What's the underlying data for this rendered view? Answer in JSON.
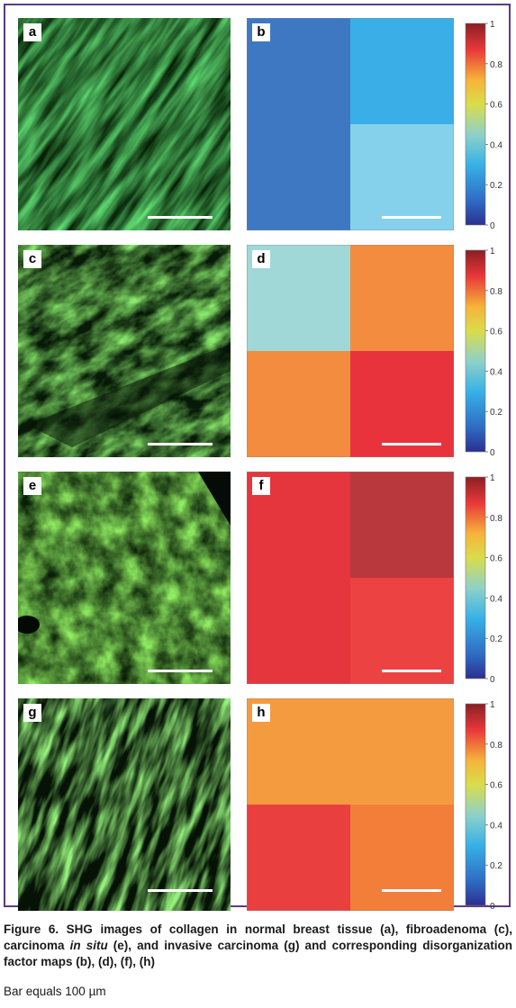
{
  "figure": {
    "panels": [
      {
        "shg_label": "a",
        "map_label": "b",
        "cells": [
          [
            "#3f78c2",
            "#3aaee6"
          ],
          [
            "#3f78c2",
            "#85d1ec"
          ]
        ]
      },
      {
        "shg_label": "c",
        "map_label": "d",
        "cells": [
          [
            "#9fd8d6",
            "#f38c3f"
          ],
          [
            "#f38c3f",
            "#e8333c"
          ]
        ]
      },
      {
        "shg_label": "e",
        "map_label": "f",
        "cells": [
          [
            "#e5353d",
            "#b9383e"
          ],
          [
            "#e5353d",
            "#ec4241"
          ]
        ]
      },
      {
        "shg_label": "g",
        "map_label": "h",
        "cells": [
          [
            "#f49b40",
            "#f49b40"
          ],
          [
            "#ea3f3f",
            "#f27e3a"
          ]
        ]
      }
    ],
    "colorbar": {
      "ticks": [
        "0",
        "0.2",
        "0.4",
        "0.6",
        "0.8",
        "1"
      ],
      "min": 0,
      "max": 1
    }
  },
  "caption": {
    "lead": "Figure 6. SHG images of collagen in normal breast tissue (a), fibroadenoma (c), carcinoma ",
    "italic": "in situ",
    "tail": " (e), and invasive carcinoma (g) and corresponding disorganization factor maps (b), (d), (f), (h)",
    "bar_note": "Bar equals 100 µm"
  }
}
